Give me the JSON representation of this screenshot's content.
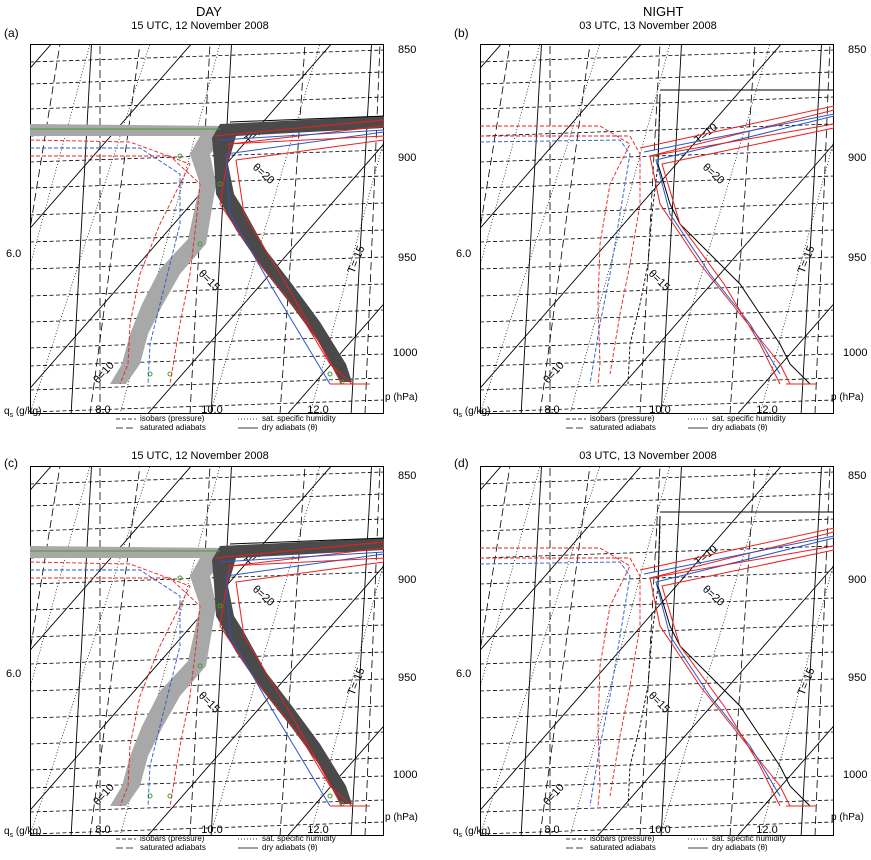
{
  "columns": [
    {
      "id": "day",
      "title": "DAY"
    },
    {
      "id": "night",
      "title": "NIGHT"
    }
  ],
  "panels": [
    {
      "letter": "(a)",
      "date": "15 UTC, 12 November 2008"
    },
    {
      "letter": "(b)",
      "date": "03 UTC, 13 November 2008"
    },
    {
      "letter": "(c)",
      "date": "15 UTC, 12 November 2008"
    },
    {
      "letter": "(d)",
      "date": "03 UTC, 13 November 2008"
    }
  ],
  "axis": {
    "y_left_label": "6.0",
    "x_label": "q",
    "x_label_sub": "s",
    "x_label_unit": " (g/kg)",
    "x_ticks": [
      "8.0",
      "10.0",
      "12.0"
    ],
    "p_label": "p (hPa)",
    "p_ticks": [
      "850",
      "900",
      "950",
      "1000"
    ]
  },
  "curve_labels": {
    "t10": "T=10",
    "t15": "T= 15",
    "th20": "θ=20",
    "th15": "θ=15",
    "th10": "θ=10"
  },
  "legend": {
    "isobars": "isobars (pressure)",
    "saturated": "saturated adiabats",
    "sat_humidity": "sat. specific humidity",
    "dry": "dry adiabats (θ)"
  },
  "colors": {
    "red": "#e8201f",
    "blue": "#2a57c9",
    "green": "#3fa02a",
    "dark_band": "#4a4a4a",
    "light_band": "#a8a8a8"
  },
  "chart_data": [
    {
      "type": "line",
      "panel": "a",
      "title": "15 UTC, 12 November 2008",
      "xlabel": "qs (g/kg)",
      "ylabel": "p (hPa)",
      "x_ticks": [
        8.0,
        10.0,
        12.0
      ],
      "p_ticks": [
        850,
        900,
        950,
        1000
      ]
    },
    {
      "type": "line",
      "panel": "b",
      "title": "03 UTC, 13 November 2008",
      "xlabel": "qs (g/kg)",
      "ylabel": "p (hPa)",
      "x_ticks": [
        8.0,
        10.0,
        12.0
      ],
      "p_ticks": [
        850,
        900,
        950,
        1000
      ]
    },
    {
      "type": "line",
      "panel": "c",
      "title": "15 UTC, 12 November 2008",
      "xlabel": "qs (g/kg)",
      "ylabel": "p (hPa)",
      "x_ticks": [
        8.0,
        10.0,
        12.0
      ],
      "p_ticks": [
        850,
        900,
        950,
        1000
      ]
    },
    {
      "type": "line",
      "panel": "d",
      "title": "03 UTC, 13 November 2008",
      "xlabel": "qs (g/kg)",
      "ylabel": "p (hPa)",
      "x_ticks": [
        8.0,
        10.0,
        12.0
      ],
      "p_ticks": [
        850,
        900,
        950,
        1000
      ]
    }
  ]
}
